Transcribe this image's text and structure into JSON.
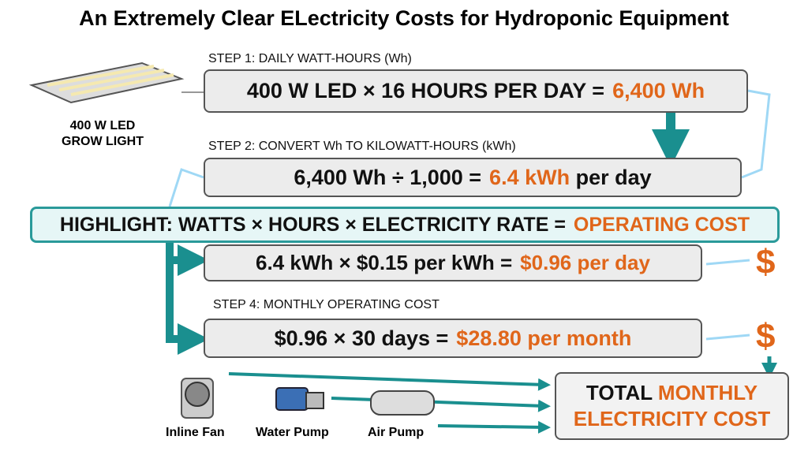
{
  "title": "An Extremely Clear ELectricity Costs for Hydroponic Equipment",
  "light": {
    "lines": [
      "400 W LED",
      "GROW LIGHT"
    ]
  },
  "step1": {
    "label": "STEP 1: DAILY WATT-HOURS (Wh)",
    "formula": "400 W LED × 16 HOURS PER DAY =",
    "result": "6,400 Wh"
  },
  "step2": {
    "label": "STEP 2: CONVERT Wh TO KILOWATT-HOURS (kWh)",
    "formula": "6,400 Wh ÷ 1,000 =",
    "result": "6.4 kWh",
    "suffix": "per day"
  },
  "highlight": {
    "formula": "HIGHLIGHT: WATTS × HOURS × ELECTRICITY RATE =",
    "result": "OPERATING COST"
  },
  "step3": {
    "formula": "6.4 kWh × $0.15 per kWh =",
    "result": "$0.96 per day",
    "icon": "$"
  },
  "step4": {
    "label": "STEP 4: MONTHLY OPERATING COST",
    "formula": "$0.96 × 30 days =",
    "result": "$28.80 per month",
    "icon": "$"
  },
  "total": {
    "lead": "TOTAL",
    "rest": "MONTHLY",
    "line2": "ELECTRICITY COST"
  },
  "equipment": [
    "Inline Fan",
    "Water Pump",
    "Air Pump"
  ]
}
